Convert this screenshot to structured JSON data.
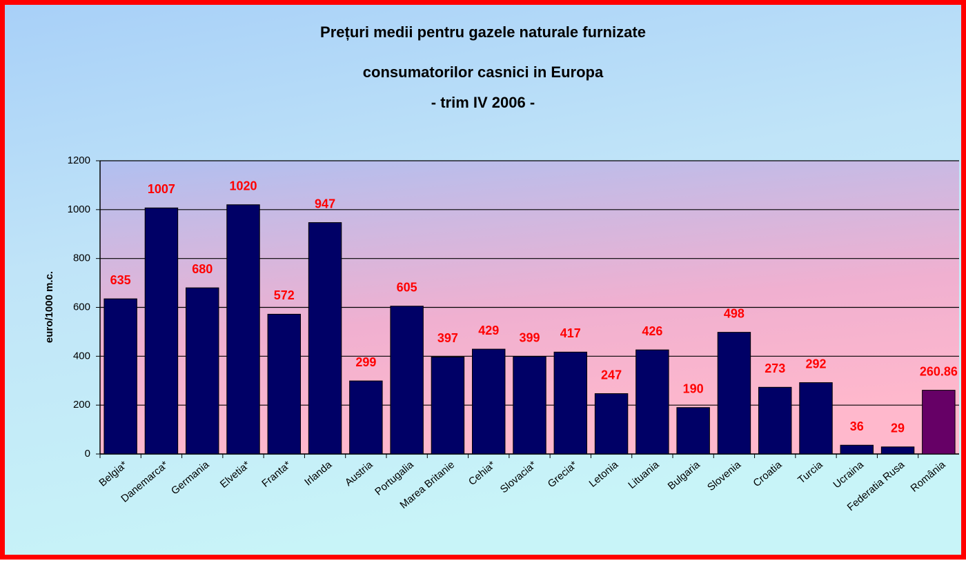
{
  "chart_data": {
    "type": "bar",
    "title": [
      "Prețuri medii pentru gazele naturale furnizate",
      "consumatorilor casnici in Europa",
      "- trim IV 2006 -"
    ],
    "y_label": "euro/1000 m.c.",
    "categories": [
      "Belgia*",
      "Danemarca*",
      "Germania",
      "Elvetia*",
      "Franta*",
      "Irlanda",
      "Austria",
      "Portugalia",
      "Marea Britanie",
      "Cehia*",
      "Slovacia*",
      "Grecia*",
      "Letonia",
      "Lituania",
      "Bulgaria",
      "Slovenia",
      "Croatia",
      "Turcia",
      "Ucraina",
      "Federatia Rusa",
      "România"
    ],
    "values": [
      635,
      1007,
      680,
      1020,
      572,
      947,
      299,
      605,
      397,
      429,
      399,
      417,
      247,
      426,
      190,
      498,
      273,
      292,
      36,
      29,
      260.86
    ],
    "colors": [
      "#000066",
      "#000066",
      "#000066",
      "#000066",
      "#000066",
      "#000066",
      "#000066",
      "#000066",
      "#000066",
      "#000066",
      "#000066",
      "#000066",
      "#000066",
      "#000066",
      "#000066",
      "#000066",
      "#000066",
      "#000066",
      "#000066",
      "#000066",
      "#660066"
    ],
    "label_color": "#ff0000",
    "ylim": [
      0,
      1200
    ],
    "yticks": [
      0,
      200,
      400,
      600,
      800,
      1000,
      1200
    ],
    "grid": true
  }
}
